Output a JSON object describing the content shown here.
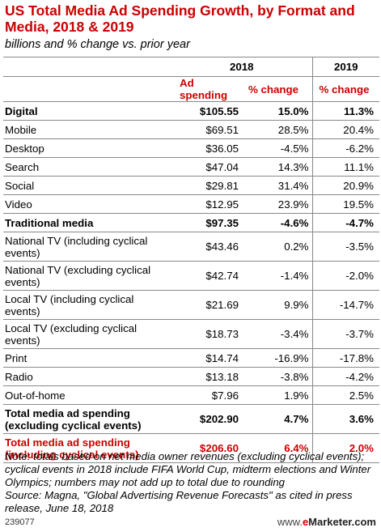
{
  "title": "US Total Media Ad Spending Growth, by Format and Media, 2018 & 2019",
  "subtitle": "billions and % change vs. prior year",
  "chart_data": {
    "type": "table",
    "title": "US Total Media Ad Spending Growth, by Format and Media, 2018 & 2019",
    "subtitle": "billions and % change vs. prior year",
    "year_headers": [
      "2018",
      "2019"
    ],
    "columns": [
      "Ad spending",
      "% change",
      "% change"
    ],
    "rows": [
      {
        "label": "Digital",
        "ad_spending_2018": "$105.55",
        "change_2018": "15.0%",
        "change_2019": "11.3%",
        "style": "bold"
      },
      {
        "label": "Mobile",
        "ad_spending_2018": "$69.51",
        "change_2018": "28.5%",
        "change_2019": "20.4%",
        "style": "normal"
      },
      {
        "label": "Desktop",
        "ad_spending_2018": "$36.05",
        "change_2018": "-4.5%",
        "change_2019": "-6.2%",
        "style": "normal"
      },
      {
        "label": "Search",
        "ad_spending_2018": "$47.04",
        "change_2018": "14.3%",
        "change_2019": "11.1%",
        "style": "normal"
      },
      {
        "label": "Social",
        "ad_spending_2018": "$29.81",
        "change_2018": "31.4%",
        "change_2019": "20.9%",
        "style": "normal"
      },
      {
        "label": "Video",
        "ad_spending_2018": "$12.95",
        "change_2018": "23.9%",
        "change_2019": "19.5%",
        "style": "normal"
      },
      {
        "label": "Traditional media",
        "ad_spending_2018": "$97.35",
        "change_2018": "-4.6%",
        "change_2019": "-4.7%",
        "style": "bold"
      },
      {
        "label": "National TV (including cyclical events)",
        "ad_spending_2018": "$43.46",
        "change_2018": "0.2%",
        "change_2019": "-3.5%",
        "style": "normal"
      },
      {
        "label": "National TV (excluding cyclical events)",
        "ad_spending_2018": "$42.74",
        "change_2018": "-1.4%",
        "change_2019": "-2.0%",
        "style": "normal"
      },
      {
        "label": "Local TV (including cyclical events)",
        "ad_spending_2018": "$21.69",
        "change_2018": "9.9%",
        "change_2019": "-14.7%",
        "style": "normal"
      },
      {
        "label": "Local TV (excluding cyclical events)",
        "ad_spending_2018": "$18.73",
        "change_2018": "-3.4%",
        "change_2019": "-3.7%",
        "style": "normal"
      },
      {
        "label": "Print",
        "ad_spending_2018": "$14.74",
        "change_2018": "-16.9%",
        "change_2019": "-17.8%",
        "style": "normal"
      },
      {
        "label": "Radio",
        "ad_spending_2018": "$13.18",
        "change_2018": "-3.8%",
        "change_2019": "-4.2%",
        "style": "normal"
      },
      {
        "label": "Out-of-home",
        "ad_spending_2018": "$7.96",
        "change_2018": "1.9%",
        "change_2019": "2.5%",
        "style": "normal"
      },
      {
        "label": "Total media ad spending (excluding cyclical events)",
        "ad_spending_2018": "$202.90",
        "change_2018": "4.7%",
        "change_2019": "3.6%",
        "style": "bold"
      },
      {
        "label": "Total media ad spending (including cyclical events)",
        "ad_spending_2018": "$206.60",
        "change_2018": "6.4%",
        "change_2019": "2.0%",
        "style": "red"
      }
    ]
  },
  "note": "Note: totals based on net media owner revenues (excluding cyclical events); cyclical events in 2018 include FIFA World Cup, midterm elections and Winter Olympics; numbers may not add up to total due to rounding",
  "source": "Source: Magna, \"Global Advertising Revenue Forecasts\" as cited in press release, June 18, 2018",
  "chart_id": "239077",
  "logo": "www.eMarketer.com",
  "colors": {
    "accent": "#cc0000",
    "rule": "#888888"
  }
}
